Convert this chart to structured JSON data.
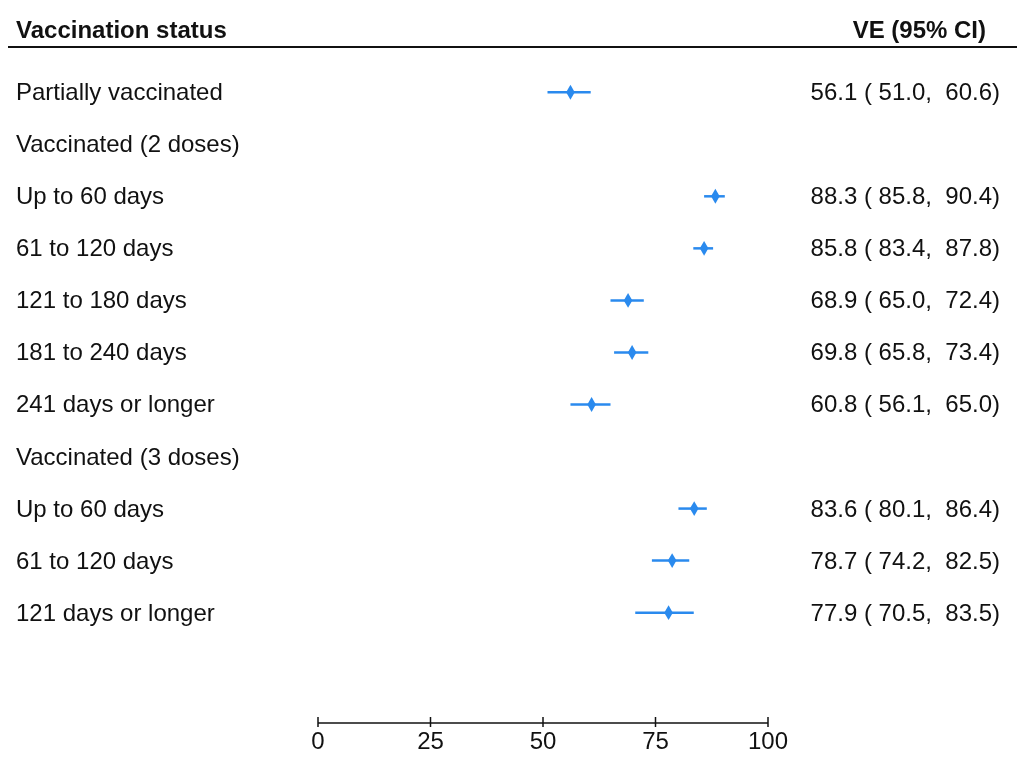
{
  "chart_data": {
    "type": "scatter",
    "orientation": "horizontal",
    "ylabel": "Vaccination status",
    "annotations": [
      "VE (95% CI)"
    ],
    "categories": [
      "Partially vaccinated",
      "Vaccinated (2 doses)",
      "Up to 60 days",
      "61 to 120 days",
      "121 to 180 days",
      "181 to 240 days",
      "241 days or longer",
      "Vaccinated (3 doses)",
      "Up to 60 days",
      "61 to 120 days",
      "121 days or longer"
    ],
    "values": [
      56.1,
      null,
      88.3,
      85.8,
      68.9,
      69.8,
      60.8,
      null,
      83.6,
      78.7,
      77.9
    ],
    "errors": [
      [
        51.0,
        60.6
      ],
      null,
      [
        85.8,
        90.4
      ],
      [
        83.4,
        87.8
      ],
      [
        65.0,
        72.4
      ],
      [
        65.8,
        73.4
      ],
      [
        56.1,
        65.0
      ],
      null,
      [
        80.1,
        86.4
      ],
      [
        74.2,
        82.5
      ],
      [
        70.5,
        83.5
      ]
    ],
    "value_labels": [
      "56.1 ( 51.0,  60.6)",
      null,
      "88.3 ( 85.8,  90.4)",
      "85.8 ( 83.4,  87.8)",
      "68.9 ( 65.0,  72.4)",
      "69.8 ( 65.8,  73.4)",
      "60.8 ( 56.1,  65.0)",
      null,
      "83.6 ( 80.1,  86.4)",
      "78.7 ( 74.2,  82.5)",
      "77.9 ( 70.5,  83.5)"
    ],
    "color": "#2a8aee",
    "marker": "diamond",
    "xlim": [
      0,
      100
    ],
    "xticks": [
      0,
      25,
      50,
      75,
      100
    ],
    "grid": false,
    "legend": false
  }
}
